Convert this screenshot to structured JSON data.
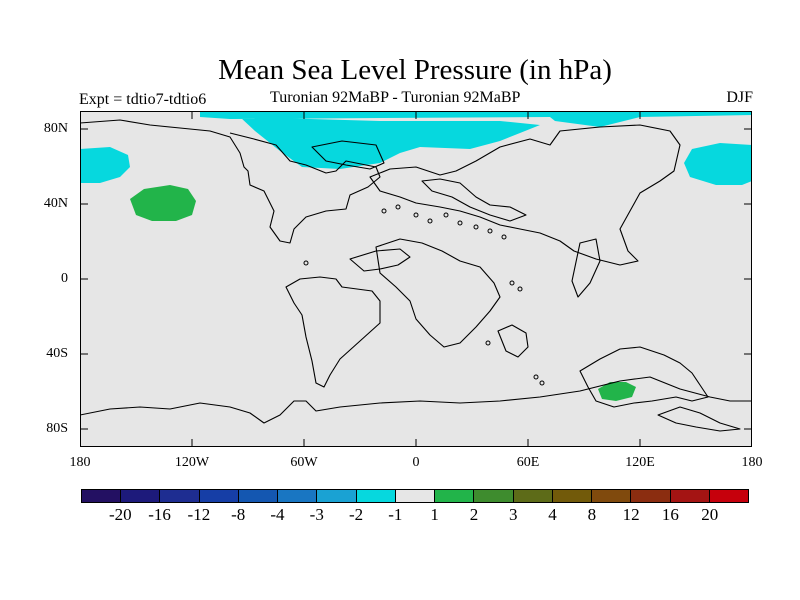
{
  "title": "Mean Sea Level Pressure (in hPa)",
  "left_label": "Expt = tdtio7-tdtio6",
  "center_label": "Turonian  92MaBP - Turonian  92MaBP",
  "right_label": "DJF",
  "y_axis_labels": [
    "80N",
    "40N",
    "0",
    "40S",
    "80S"
  ],
  "x_axis_labels": [
    "180",
    "120W",
    "60W",
    "0",
    "60E",
    "120E",
    "180"
  ],
  "colorbar": {
    "colors": [
      "#231062",
      "#1d1a7b",
      "#1e2d91",
      "#163ea6",
      "#1457b1",
      "#1976c2",
      "#1aa2d3",
      "#06d8de",
      "#e6e6e6",
      "#22b44a",
      "#3e8c2e",
      "#5d6b18",
      "#725a0a",
      "#804a0d",
      "#8b2d10",
      "#a41413",
      "#c6000c"
    ],
    "labels": [
      "-20",
      "-16",
      "-12",
      "-8",
      "-4",
      "-3",
      "-2",
      "-1",
      "1",
      "2",
      "3",
      "4",
      "8",
      "12",
      "16",
      "20"
    ]
  },
  "map": {
    "ocean_color": "#e6e6e6",
    "region_colors": {
      "cyan": "#06d8de",
      "green": "#22b44a"
    }
  }
}
